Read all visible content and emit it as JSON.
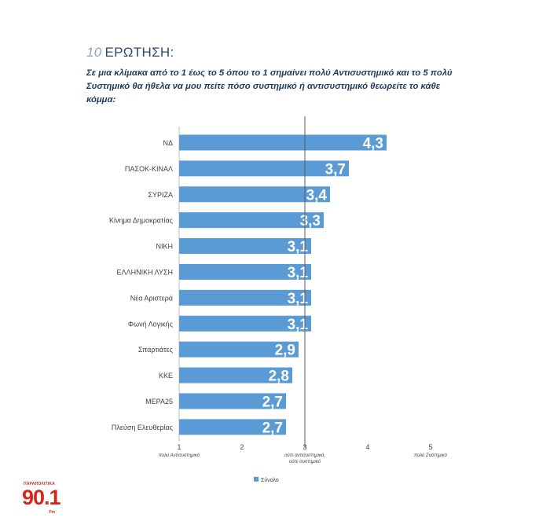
{
  "header": {
    "question_number": "10",
    "question_title": "ΕΡΩΤΗΣΗ:",
    "question_text": "Σε μια κλίμακα από το 1 έως το 5 όπου το 1 σημαίνει πολύ Αντισυστημικό και το 5 πολύ Συστημικό θα ήθελα να μου πείτε πόσο συστημικό ή αντισυστημικό θεωρείτε το κάθε κόμμα:"
  },
  "logo": {
    "top_text": "ΠΑΡΑΠΟΛΙΤΙΚΑ",
    "main_text": "90.1",
    "fm_text": "Fm"
  },
  "colors": {
    "bar": "#5b9bd5",
    "bar_label": "#ffffff",
    "category_text": "#404040",
    "axis": "#bfbfbf",
    "midline": "#595959"
  },
  "chart_data": {
    "type": "bar",
    "orientation": "horizontal",
    "categories": [
      "ΝΔ",
      "ΠΑΣΟΚ-ΚΙΝΑΛ",
      "ΣΥΡΙΖΑ",
      "Κίνημα Δημοκρατίας",
      "ΝΙΚΗ",
      "ΕΛΛΗΝΙΚΗ ΛΥΣΗ",
      "Νέα Αριστερά",
      "Φωνή Λογικής",
      "Σπαρτιάτες",
      "ΚΚΕ",
      "ΜΕΡΑ25",
      "Πλεύση Ελευθερίας"
    ],
    "series": [
      {
        "name": "Σύνολο",
        "values": [
          4.3,
          3.7,
          3.4,
          3.3,
          3.1,
          3.1,
          3.1,
          3.1,
          2.9,
          2.8,
          2.7,
          2.7
        ],
        "labels": [
          "4,3",
          "3,7",
          "3,4",
          "3,3",
          "3,1",
          "3,1",
          "3,1",
          "3,1",
          "2,9",
          "2,8",
          "2,7",
          "2,7"
        ]
      }
    ],
    "xlim": [
      1,
      5
    ],
    "xticks": [
      1,
      2,
      3,
      4,
      5
    ],
    "xtick_labels": [
      "1",
      "2",
      "3",
      "4",
      "5"
    ],
    "xtick_sublabels": [
      [
        "πολύ Αντισυστημικό"
      ],
      [],
      [
        "ούτε αντισυστημικό,",
        "ούτε συστημικό"
      ],
      [],
      [
        "πολύ Συστημικό"
      ]
    ],
    "reference_line": 3,
    "legend": "bottom-center"
  }
}
